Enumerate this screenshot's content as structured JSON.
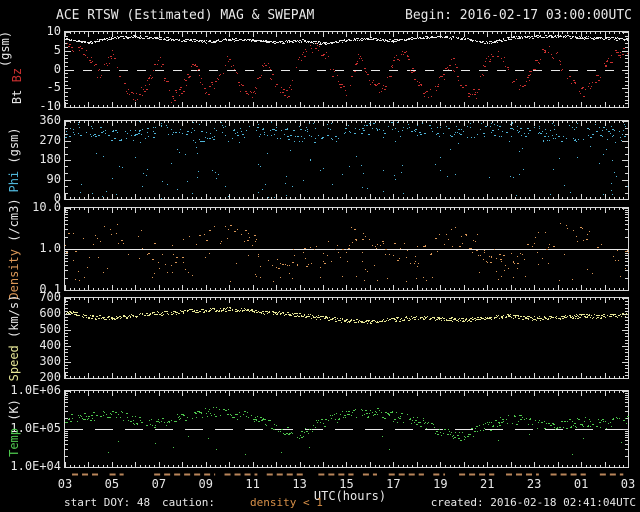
{
  "header": {
    "title": "ACE RTSW (Estimated) MAG & SWEPAM",
    "begin": "Begin: 2016-02-17 03:00:00UTC"
  },
  "footer": {
    "start_doy": "start DOY:  48",
    "caution_label": "caution:",
    "caution_note": "density < 1",
    "caution_note_color": "#d89048",
    "created": "created: 2016-02-18 02:41:04UTC"
  },
  "colors": {
    "background": "#000000",
    "frame": "#d8d8d8",
    "text": "#e8e8e8",
    "bt": "#e8e8e8",
    "bz": "#cc3030",
    "phi": "#4fb6da",
    "density": "#dc9858",
    "speed": "#e6e696",
    "temp": "#4ec84e",
    "caution_marks": "#b9855a"
  },
  "chart_data": {
    "type": "scatter",
    "x": {
      "axis_label": "UTC(hours)",
      "start_hour": 3,
      "end_hour": 27,
      "ticks": [
        {
          "label": "03",
          "hour": 3
        },
        {
          "label": "05",
          "hour": 5
        },
        {
          "label": "07",
          "hour": 7
        },
        {
          "label": "09",
          "hour": 9
        },
        {
          "label": "11",
          "hour": 11
        },
        {
          "label": "13",
          "hour": 13
        },
        {
          "label": "15",
          "hour": 15
        },
        {
          "label": "17",
          "hour": 17
        },
        {
          "label": "19",
          "hour": 19
        },
        {
          "label": "21",
          "hour": 21
        },
        {
          "label": "23",
          "hour": 23
        },
        {
          "label": "01",
          "hour": 25
        },
        {
          "label": "03",
          "hour": 27
        }
      ]
    },
    "caution_segments": [
      [
        3.3,
        4.5
      ],
      [
        4.9,
        5.5
      ],
      [
        6.8,
        9.4
      ],
      [
        9.8,
        11.2
      ],
      [
        11.6,
        13.3
      ],
      [
        13.8,
        15.3
      ],
      [
        15.7,
        16.3
      ],
      [
        16.8,
        18.3
      ],
      [
        18.7,
        19.2
      ],
      [
        19.8,
        21.3
      ],
      [
        21.8,
        23.2
      ],
      [
        23.7,
        25.2
      ],
      [
        25.8,
        26.8
      ]
    ],
    "panels": [
      {
        "id": "mag",
        "scale": "linear",
        "ymin": -10,
        "ymax": 10,
        "ylabel_lines": [
          {
            "parts": [
              {
                "t": "Bt ",
                "c": "#e8e8e8"
              },
              {
                "t": "Bz",
                "c": "#cc3030"
              }
            ]
          },
          {
            "parts": [
              {
                "t": "(gsm)",
                "c": "#e8e8e8"
              }
            ]
          }
        ],
        "ytick_labels": [
          {
            "text": "10",
            "value": 10
          },
          {
            "text": "5",
            "value": 5
          },
          {
            "text": "0",
            "value": 0
          },
          {
            "text": "-5",
            "value": -5
          },
          {
            "text": "-10",
            "value": -10
          }
        ],
        "ytick_majors": [
          10,
          5,
          0,
          -5,
          -10
        ],
        "ytick_minors": [
          9,
          8,
          7,
          6,
          4,
          3,
          2,
          1,
          -1,
          -2,
          -3,
          -4,
          -6,
          -7,
          -8,
          -9
        ],
        "ref_line": {
          "value": 0,
          "style": "dashed"
        },
        "series": [
          {
            "name": "Bz",
            "color": "#cc3030",
            "control_step": 0.5,
            "step": 0.04,
            "jitter": 1.5,
            "drop": 0.3,
            "control": [
              6.5,
              5.5,
              3.5,
              -2,
              4.5,
              -5,
              -8,
              -4,
              3,
              -7.5,
              -5,
              2,
              -6,
              -3,
              4,
              -5,
              -7,
              2,
              -4,
              -6.5,
              3,
              6,
              5,
              -2,
              -6,
              4,
              -3,
              -5.5,
              2,
              5,
              -4,
              -7,
              -3,
              2,
              -5,
              -6.5,
              3,
              5,
              -2,
              -4.5,
              1,
              6,
              3,
              -3,
              -6,
              -4.5,
              2,
              4,
              5,
              4
            ],
            "extra_scatter": []
          },
          {
            "name": "Bt",
            "color": "#e8e8e8",
            "control_step": 1,
            "step": 0.03,
            "jitter": 0.35,
            "drop": 0.12,
            "control": [
              8.3,
              7.2,
              8.6,
              8.9,
              8.4,
              8.0,
              7.5,
              8.1,
              7.9,
              7.3,
              7.8,
              7.1,
              7.9,
              8.4,
              7.7,
              8.5,
              8.8,
              8.3,
              7.1,
              8.5,
              8.8,
              9.0,
              8.6,
              8.4,
              8.1
            ],
            "extra_scatter": []
          }
        ]
      },
      {
        "id": "phi",
        "scale": "linear",
        "ymin": 0,
        "ymax": 360,
        "ylabel_lines": [
          {
            "parts": [
              {
                "t": "Phi ",
                "c": "#4fb6da"
              },
              {
                "t": "(gsm)",
                "c": "#e8e8e8"
              }
            ]
          }
        ],
        "ytick_labels": [
          {
            "text": "360",
            "value": 360
          },
          {
            "text": "270",
            "value": 270
          },
          {
            "text": "180",
            "value": 180
          },
          {
            "text": "90",
            "value": 90
          },
          {
            "text": "0",
            "value": 0
          }
        ],
        "ytick_majors": [
          360,
          270,
          180,
          90,
          0
        ],
        "ytick_minors": [
          330,
          300,
          240,
          210,
          150,
          120,
          60,
          30
        ],
        "ref_line": null,
        "series": [
          {
            "name": "Phi",
            "color": "#4fb6da",
            "control_step": 1,
            "step": 0.05,
            "jitter": 30,
            "drop": 0.45,
            "control": [
              305,
              315,
              290,
              300,
              318,
              300,
              282,
              295,
              312,
              308,
              296,
              286,
              302,
              322,
              332,
              326,
              316,
              306,
              322,
              312,
              300,
              290,
              296,
              306,
              300
            ],
            "extra_scatter": [
              {
                "count": 140,
                "min": 2,
                "max": 350
              },
              {
                "count": 80,
                "min": 310,
                "max": 358
              }
            ]
          }
        ]
      },
      {
        "id": "density",
        "scale": "log",
        "ymin": 0.1,
        "ymax": 10,
        "ylabel_lines": [
          {
            "parts": [
              {
                "t": "Density ",
                "c": "#dc9858"
              },
              {
                "t": "(/cm3)",
                "c": "#e8e8e8"
              }
            ]
          }
        ],
        "ytick_labels": [
          {
            "text": "10.0",
            "value": 10
          },
          {
            "text": "1.0",
            "value": 1
          },
          {
            "text": "0.1",
            "value": 0.1
          }
        ],
        "ytick_majors": [
          10,
          1,
          0.1
        ],
        "ytick_minors": [
          9,
          8,
          7,
          6,
          5,
          4,
          3,
          2,
          0.9,
          0.8,
          0.7,
          0.6,
          0.5,
          0.4,
          0.3,
          0.2
        ],
        "ref_line": {
          "value": 1,
          "style": "solid"
        },
        "series": [
          {
            "name": "Density",
            "color": "#dc9858",
            "control_step": 1,
            "step": 0.06,
            "jitter": 0.28,
            "drop": 0.5,
            "control": [
              1.6,
              1.1,
              2.4,
              2.1,
              0.6,
              0.9,
              2.1,
              2.6,
              1.4,
              0.5,
              0.75,
              0.6,
              1.8,
              2.3,
              1.1,
              0.65,
              1.5,
              2.0,
              0.8,
              0.55,
              1.3,
              2.4,
              2.9,
              1.1,
              0.8
            ],
            "extra_scatter": [
              {
                "count": 90,
                "min": 0.16,
                "max": 0.85
              }
            ]
          }
        ]
      },
      {
        "id": "speed",
        "scale": "linear",
        "ymin": 200,
        "ymax": 700,
        "ylabel_lines": [
          {
            "parts": [
              {
                "t": "Speed ",
                "c": "#e6e696"
              },
              {
                "t": "(km/s)",
                "c": "#e8e8e8"
              }
            ]
          }
        ],
        "ytick_labels": [
          {
            "text": "700",
            "value": 700
          },
          {
            "text": "600",
            "value": 600
          },
          {
            "text": "500",
            "value": 500
          },
          {
            "text": "400",
            "value": 400
          },
          {
            "text": "300",
            "value": 300
          },
          {
            "text": "200",
            "value": 200
          }
        ],
        "ytick_majors": [
          700,
          600,
          500,
          400,
          300,
          200
        ],
        "ytick_minors": [
          680,
          660,
          640,
          620,
          580,
          560,
          540,
          520,
          480,
          460,
          440,
          420,
          380,
          360,
          340,
          320,
          280,
          260,
          240,
          220
        ],
        "ref_line": null,
        "series": [
          {
            "name": "Speed",
            "color": "#e6e696",
            "control_step": 1,
            "step": 0.03,
            "jitter": 12,
            "drop": 0.15,
            "control": [
              618,
              588,
              572,
              592,
              606,
              616,
              626,
              632,
              620,
              606,
              596,
              576,
              560,
              554,
              566,
              580,
              572,
              566,
              578,
              588,
              574,
              580,
              590,
              586,
              598
            ],
            "extra_scatter": []
          }
        ]
      },
      {
        "id": "temp",
        "scale": "log",
        "ymin": 10000,
        "ymax": 1000000,
        "ylabel_lines": [
          {
            "parts": [
              {
                "t": "Temp ",
                "c": "#4ec84e"
              },
              {
                "t": "(K)",
                "c": "#e8e8e8"
              }
            ]
          }
        ],
        "ytick_labels": [
          {
            "text": "1.0E+06",
            "value": 1000000
          },
          {
            "text": "1.0E+05",
            "value": 100000
          },
          {
            "text": "1.0E+04",
            "value": 10000
          }
        ],
        "ytick_majors": [
          1000000,
          100000,
          10000
        ],
        "ytick_minors": [
          900000,
          800000,
          700000,
          600000,
          500000,
          400000,
          300000,
          200000,
          90000,
          80000,
          70000,
          60000,
          50000,
          40000,
          30000,
          20000
        ],
        "ref_line": {
          "value": 100000,
          "style": "dashed-long"
        },
        "series": [
          {
            "name": "Temp",
            "color": "#4ec84e",
            "control_step": 1,
            "step": 0.04,
            "jitter": 0.13,
            "drop": 0.3,
            "control": [
              180000,
              230000,
              260000,
              160000,
              140000,
              210000,
              290000,
              260000,
              210000,
              110000,
              75000,
              150000,
              250000,
              290000,
              220000,
              170000,
              80000,
              65000,
              120000,
              190000,
              150000,
              115000,
              160000,
              135000,
              190000
            ],
            "extra_scatter": [
              {
                "count": 18,
                "min": 20000,
                "max": 75000
              }
            ]
          }
        ]
      }
    ]
  }
}
